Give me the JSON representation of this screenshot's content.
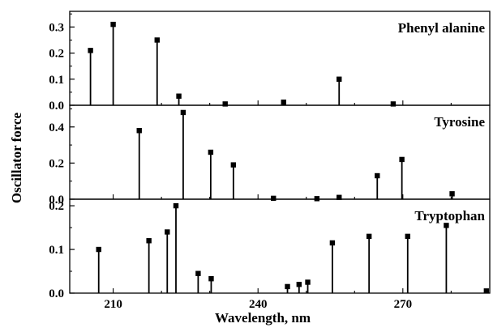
{
  "chart_data": {
    "type": "bar",
    "subtype": "stick-spectrum",
    "xlabel": "Wavelength, nm",
    "ylabel": "Oscillator force",
    "xlim": [
      201,
      288
    ],
    "x_ticks": [
      210,
      240,
      270
    ],
    "grid": false,
    "panels": [
      {
        "title": "Phenyl alanine",
        "ylim": [
          0,
          0.36
        ],
        "y_ticks": [
          0.0,
          0.1,
          0.2,
          0.3
        ],
        "y_tick_labels": [
          "0.0",
          "0.1",
          "0.2",
          "0.3"
        ],
        "x": [
          205.3,
          210.0,
          219.1,
          223.6,
          233.2,
          245.3,
          256.8,
          268.0
        ],
        "values": [
          0.21,
          0.31,
          0.25,
          0.035,
          0.005,
          0.012,
          0.1,
          0.005
        ]
      },
      {
        "title": "Tyrosine",
        "ylim": [
          0,
          0.52
        ],
        "y_ticks": [
          0.0,
          0.2,
          0.4
        ],
        "y_tick_labels": [
          "0.0",
          "0.2",
          "0.4"
        ],
        "x": [
          215.4,
          224.5,
          230.2,
          234.9,
          243.2,
          252.2,
          256.8,
          264.7,
          269.8,
          280.2
        ],
        "values": [
          0.38,
          0.48,
          0.26,
          0.19,
          0.005,
          0.003,
          0.01,
          0.13,
          0.22,
          0.03
        ]
      },
      {
        "title": "Tryptophan",
        "ylim": [
          0,
          0.215
        ],
        "y_ticks": [
          0.0,
          0.1,
          0.2
        ],
        "y_tick_labels": [
          "0.0",
          "0.1",
          "0.2"
        ],
        "x": [
          207.0,
          217.4,
          221.2,
          223.0,
          227.6,
          230.3,
          246.1,
          248.5,
          250.3,
          255.4,
          263.0,
          271.0,
          279.0,
          287.3
        ],
        "values": [
          0.1,
          0.12,
          0.14,
          0.2,
          0.045,
          0.033,
          0.015,
          0.02,
          0.025,
          0.115,
          0.13,
          0.13,
          0.155,
          0.005
        ]
      }
    ]
  }
}
